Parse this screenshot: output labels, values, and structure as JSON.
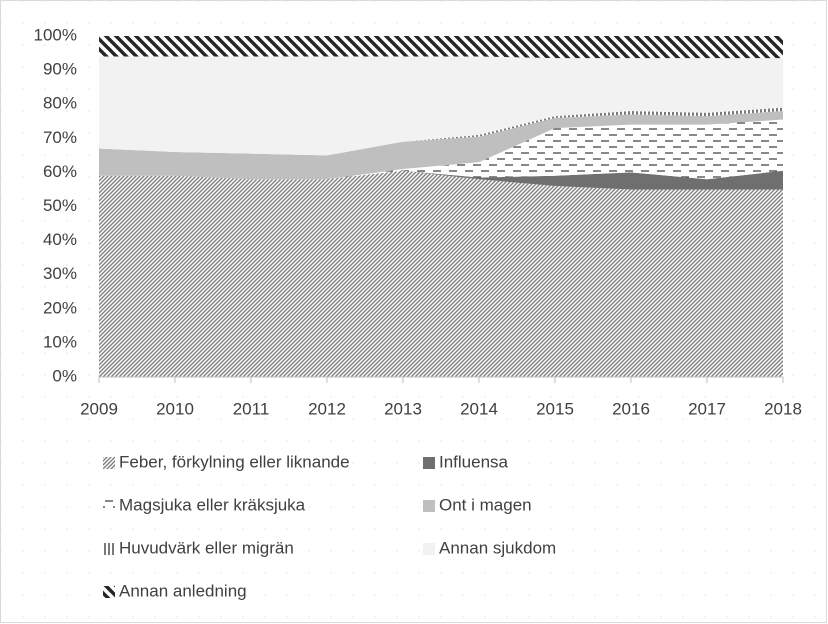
{
  "chart_data": {
    "type": "stacked_area",
    "categories": [
      "2009",
      "2010",
      "2011",
      "2012",
      "2013",
      "2014",
      "2015",
      "2016",
      "2017",
      "2018"
    ],
    "ylim": [
      0,
      100
    ],
    "yticks": [
      {
        "value": 0,
        "label": "0%"
      },
      {
        "value": 10,
        "label": "10%"
      },
      {
        "value": 20,
        "label": "20%"
      },
      {
        "value": 30,
        "label": "30%"
      },
      {
        "value": 40,
        "label": "40%"
      },
      {
        "value": 50,
        "label": "50%"
      },
      {
        "value": 60,
        "label": "60%"
      },
      {
        "value": 70,
        "label": "70%"
      },
      {
        "value": 80,
        "label": "80%"
      },
      {
        "value": 90,
        "label": "90%"
      },
      {
        "value": 100,
        "label": "100%"
      }
    ],
    "series": [
      {
        "name": "Feber, förkylning eller liknande",
        "color": "#7f7f7f",
        "pattern": "diagonal",
        "values": [
          59,
          59,
          58,
          58,
          60.5,
          58,
          56,
          55,
          55,
          55
        ]
      },
      {
        "name": "Influensa",
        "color": "#6f6f6f",
        "pattern": "solid",
        "values": [
          0,
          0,
          0,
          0,
          0,
          0.5,
          3,
          5,
          3,
          5.5
        ]
      },
      {
        "name": "Magsjuka eller kräksjuka",
        "color": "#404040",
        "pattern": "dashes",
        "values": [
          0,
          0,
          0,
          0,
          0.5,
          4.5,
          14,
          14,
          16,
          15
        ]
      },
      {
        "name": "Ont i magen",
        "color": "#bfbfbf",
        "pattern": "solid",
        "values": [
          8,
          7,
          7.5,
          7,
          8,
          7.5,
          3,
          3,
          2.5,
          2.5
        ]
      },
      {
        "name": "Huvudvärk eller migrän",
        "color": "#404040",
        "pattern": "vertical",
        "values": [
          0,
          0,
          0,
          0,
          0,
          0.5,
          0.5,
          1,
          1,
          1
        ]
      },
      {
        "name": "Annan sjukdom",
        "color": "#f2f2f2",
        "pattern": "solid",
        "values": [
          27,
          28,
          28.5,
          29,
          25,
          23,
          17,
          15.5,
          16,
          14.5
        ]
      },
      {
        "name": "Annan anledning",
        "color": "#262626",
        "pattern": "backdiagonal",
        "values": [
          6,
          6,
          6,
          6,
          6,
          6,
          6.5,
          6.5,
          6.5,
          6.5
        ]
      }
    ]
  }
}
